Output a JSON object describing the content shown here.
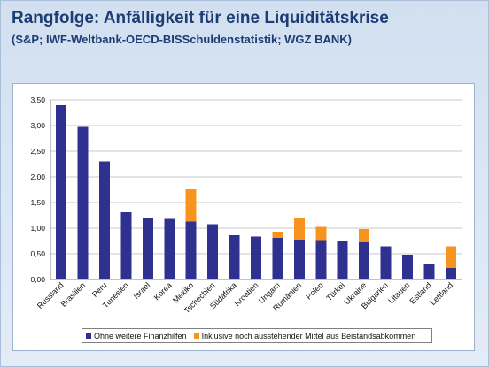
{
  "chart_data": {
    "type": "bar",
    "stacked": true,
    "title": "Rangfolge: Anfälligkeit für eine Liquiditätskrise",
    "subtitle": "(S&P; IWF-Weltbank-OECD-BISSchuldenstatistik; WGZ BANK)",
    "ylim": [
      0,
      3.5
    ],
    "yticks": [
      "0,00",
      "0,50",
      "1,00",
      "1,50",
      "2,00",
      "2,50",
      "3,00",
      "3,50"
    ],
    "grid": true,
    "legend_position": "bottom",
    "categories": [
      "Russland",
      "Brasilien",
      "Peru",
      "Tunesien",
      "Israel",
      "Korea",
      "Mexiko",
      "Tschechien",
      "Südafrika",
      "Kroatien",
      "Ungarn",
      "Rumänien",
      "Polen",
      "Türkei",
      "Ukraine",
      "Bulgarien",
      "Litauen",
      "Estland",
      "Lettland"
    ],
    "series": [
      {
        "name": "Ohne weitere Finanzhilfen",
        "color": "#2e318f",
        "values": [
          3.4,
          2.97,
          2.3,
          1.31,
          1.21,
          1.18,
          1.13,
          1.08,
          0.86,
          0.84,
          0.81,
          0.78,
          0.77,
          0.74,
          0.72,
          0.65,
          0.48,
          0.29,
          0.22
        ]
      },
      {
        "name": "Inklusive noch ausstehender Mittel aus Beistandsabkommen",
        "color": "#f7941e",
        "values": [
          0,
          0,
          0,
          0,
          0,
          0,
          0.63,
          0,
          0,
          0,
          0.12,
          0.43,
          0.26,
          0,
          0.26,
          0,
          0,
          0,
          0.43
        ]
      }
    ]
  }
}
